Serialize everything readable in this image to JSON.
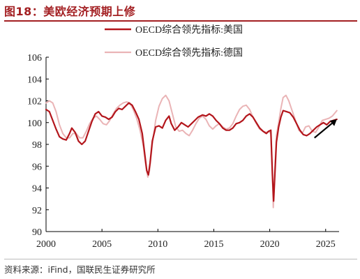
{
  "title": "图18：美欧经济预期上修",
  "source": "资料来源：iFind，国联民生证券研究所",
  "chart_data": {
    "type": "line",
    "title": "图18：美欧经济预期上修",
    "xlabel": "",
    "ylabel": "",
    "xlim": [
      2000,
      2026.2
    ],
    "ylim": [
      90,
      106
    ],
    "xticks": [
      2000,
      2005,
      2010,
      2015,
      2020,
      2025
    ],
    "yticks": [
      90,
      92,
      94,
      96,
      98,
      100,
      102,
      104,
      106
    ],
    "grid": false,
    "legend_position": "top-center",
    "series": [
      {
        "name": "OECD综合领先指标:美国",
        "color": "#b3161c",
        "points": [
          [
            2000.0,
            101.2
          ],
          [
            2000.3,
            101.0
          ],
          [
            2000.6,
            100.2
          ],
          [
            2000.9,
            99.4
          ],
          [
            2001.2,
            98.7
          ],
          [
            2001.5,
            98.5
          ],
          [
            2001.8,
            98.4
          ],
          [
            2002.1,
            99.0
          ],
          [
            2002.3,
            99.5
          ],
          [
            2002.6,
            99.1
          ],
          [
            2002.9,
            98.3
          ],
          [
            2003.2,
            98.0
          ],
          [
            2003.5,
            98.3
          ],
          [
            2003.8,
            99.2
          ],
          [
            2004.1,
            100.1
          ],
          [
            2004.4,
            100.8
          ],
          [
            2004.7,
            101.0
          ],
          [
            2005.0,
            100.6
          ],
          [
            2005.3,
            100.5
          ],
          [
            2005.6,
            100.3
          ],
          [
            2005.9,
            100.5
          ],
          [
            2006.2,
            101.0
          ],
          [
            2006.5,
            101.3
          ],
          [
            2006.8,
            101.2
          ],
          [
            2007.1,
            101.5
          ],
          [
            2007.4,
            101.8
          ],
          [
            2007.7,
            101.6
          ],
          [
            2008.0,
            101.0
          ],
          [
            2008.3,
            100.3
          ],
          [
            2008.6,
            99.0
          ],
          [
            2008.8,
            97.3
          ],
          [
            2009.0,
            95.6
          ],
          [
            2009.15,
            95.2
          ],
          [
            2009.3,
            96.3
          ],
          [
            2009.5,
            98.3
          ],
          [
            2009.8,
            99.6
          ],
          [
            2010.1,
            99.7
          ],
          [
            2010.4,
            99.5
          ],
          [
            2010.7,
            100.2
          ],
          [
            2011.0,
            100.6
          ],
          [
            2011.2,
            99.9
          ],
          [
            2011.5,
            99.3
          ],
          [
            2011.8,
            99.6
          ],
          [
            2012.1,
            100.0
          ],
          [
            2012.4,
            99.8
          ],
          [
            2012.7,
            99.6
          ],
          [
            2013.0,
            99.9
          ],
          [
            2013.3,
            100.2
          ],
          [
            2013.6,
            100.5
          ],
          [
            2014.0,
            100.7
          ],
          [
            2014.3,
            100.6
          ],
          [
            2014.6,
            100.8
          ],
          [
            2014.9,
            100.6
          ],
          [
            2015.2,
            100.2
          ],
          [
            2015.5,
            99.9
          ],
          [
            2015.8,
            99.5
          ],
          [
            2016.1,
            99.3
          ],
          [
            2016.4,
            99.3
          ],
          [
            2016.7,
            99.5
          ],
          [
            2017.0,
            99.9
          ],
          [
            2017.3,
            100.0
          ],
          [
            2017.6,
            100.2
          ],
          [
            2017.9,
            100.6
          ],
          [
            2018.2,
            100.8
          ],
          [
            2018.5,
            100.5
          ],
          [
            2018.8,
            100.0
          ],
          [
            2019.1,
            99.5
          ],
          [
            2019.4,
            99.2
          ],
          [
            2019.7,
            99.0
          ],
          [
            2019.9,
            99.2
          ],
          [
            2020.1,
            99.3
          ],
          [
            2020.25,
            95.0
          ],
          [
            2020.35,
            92.8
          ],
          [
            2020.45,
            95.0
          ],
          [
            2020.6,
            98.2
          ],
          [
            2020.8,
            99.6
          ],
          [
            2021.0,
            100.5
          ],
          [
            2021.2,
            101.1
          ],
          [
            2021.5,
            101.0
          ],
          [
            2021.8,
            100.9
          ],
          [
            2022.1,
            100.5
          ],
          [
            2022.4,
            99.9
          ],
          [
            2022.7,
            99.3
          ],
          [
            2023.0,
            98.9
          ],
          [
            2023.3,
            98.8
          ],
          [
            2023.6,
            99.0
          ],
          [
            2023.9,
            99.3
          ],
          [
            2024.2,
            99.6
          ],
          [
            2024.5,
            99.8
          ],
          [
            2024.8,
            100.0
          ],
          [
            2025.1,
            99.8
          ],
          [
            2025.4,
            100.1
          ],
          [
            2025.7,
            100.2
          ],
          [
            2026.0,
            100.3
          ]
        ]
      },
      {
        "name": "OECD综合领先指标:德国",
        "color": "#eab4b6",
        "points": [
          [
            2000.0,
            101.8
          ],
          [
            2000.3,
            102.0
          ],
          [
            2000.6,
            101.8
          ],
          [
            2000.9,
            101.0
          ],
          [
            2001.2,
            99.8
          ],
          [
            2001.5,
            99.0
          ],
          [
            2001.8,
            98.6
          ],
          [
            2002.1,
            98.6
          ],
          [
            2002.4,
            99.0
          ],
          [
            2002.7,
            99.0
          ],
          [
            2003.0,
            98.6
          ],
          [
            2003.3,
            98.6
          ],
          [
            2003.6,
            99.2
          ],
          [
            2003.9,
            99.9
          ],
          [
            2004.2,
            100.4
          ],
          [
            2004.5,
            100.6
          ],
          [
            2004.8,
            100.3
          ],
          [
            2005.1,
            99.9
          ],
          [
            2005.4,
            99.8
          ],
          [
            2005.7,
            100.2
          ],
          [
            2006.0,
            100.8
          ],
          [
            2006.3,
            101.3
          ],
          [
            2006.6,
            101.6
          ],
          [
            2006.9,
            101.8
          ],
          [
            2007.2,
            101.9
          ],
          [
            2007.5,
            101.8
          ],
          [
            2007.8,
            101.2
          ],
          [
            2008.1,
            100.4
          ],
          [
            2008.4,
            99.3
          ],
          [
            2008.7,
            97.8
          ],
          [
            2008.9,
            96.2
          ],
          [
            2009.1,
            95.0
          ],
          [
            2009.25,
            95.6
          ],
          [
            2009.5,
            98.0
          ],
          [
            2009.8,
            100.2
          ],
          [
            2010.1,
            101.5
          ],
          [
            2010.4,
            102.2
          ],
          [
            2010.7,
            102.5
          ],
          [
            2011.0,
            102.0
          ],
          [
            2011.3,
            100.8
          ],
          [
            2011.6,
            99.6
          ],
          [
            2011.9,
            99.2
          ],
          [
            2012.2,
            99.3
          ],
          [
            2012.5,
            99.0
          ],
          [
            2012.8,
            98.8
          ],
          [
            2013.1,
            99.3
          ],
          [
            2013.4,
            99.9
          ],
          [
            2013.7,
            100.4
          ],
          [
            2014.0,
            100.6
          ],
          [
            2014.3,
            100.3
          ],
          [
            2014.6,
            99.7
          ],
          [
            2014.9,
            99.4
          ],
          [
            2015.2,
            99.7
          ],
          [
            2015.5,
            99.9
          ],
          [
            2015.8,
            99.6
          ],
          [
            2016.1,
            99.4
          ],
          [
            2016.4,
            99.5
          ],
          [
            2016.7,
            99.9
          ],
          [
            2017.0,
            100.6
          ],
          [
            2017.3,
            101.2
          ],
          [
            2017.6,
            101.5
          ],
          [
            2017.9,
            101.6
          ],
          [
            2018.2,
            101.2
          ],
          [
            2018.5,
            100.5
          ],
          [
            2018.8,
            99.9
          ],
          [
            2019.1,
            99.4
          ],
          [
            2019.4,
            99.2
          ],
          [
            2019.7,
            99.1
          ],
          [
            2019.9,
            99.2
          ],
          [
            2020.1,
            99.0
          ],
          [
            2020.25,
            94.8
          ],
          [
            2020.32,
            92.2
          ],
          [
            2020.45,
            95.5
          ],
          [
            2020.6,
            98.8
          ],
          [
            2020.8,
            100.0
          ],
          [
            2021.0,
            101.3
          ],
          [
            2021.2,
            102.3
          ],
          [
            2021.45,
            102.5
          ],
          [
            2021.7,
            102.0
          ],
          [
            2022.0,
            101.1
          ],
          [
            2022.3,
            100.2
          ],
          [
            2022.6,
            99.3
          ],
          [
            2022.9,
            99.0
          ],
          [
            2023.2,
            99.6
          ],
          [
            2023.5,
            99.7
          ],
          [
            2023.8,
            99.2
          ],
          [
            2024.1,
            99.1
          ],
          [
            2024.4,
            99.6
          ],
          [
            2024.7,
            100.2
          ],
          [
            2025.0,
            100.3
          ],
          [
            2025.3,
            100.4
          ],
          [
            2025.6,
            100.6
          ],
          [
            2026.0,
            101.1
          ]
        ]
      }
    ],
    "annotation": {
      "type": "arrow",
      "from": [
        2024.0,
        98.6
      ],
      "to": [
        2026.0,
        100.3
      ],
      "color": "#000000"
    }
  }
}
